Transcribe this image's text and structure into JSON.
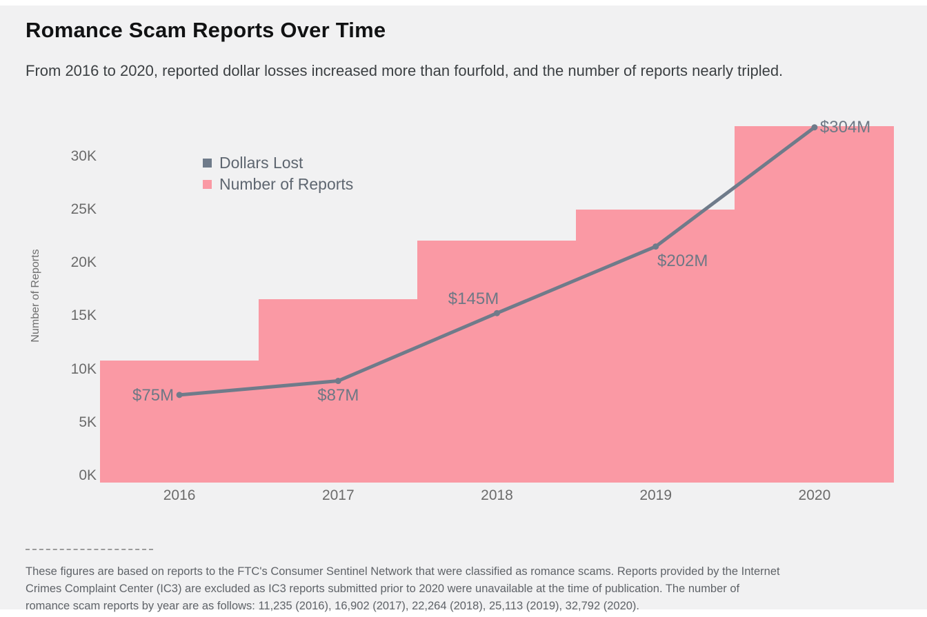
{
  "page": {
    "title": "Romance Scam Reports Over Time",
    "subtitle": "From 2016 to 2020, reported dollar losses increased more than fourfold, and the number of reports nearly tripled.",
    "footnote_lines": [
      "These figures are based on reports to the FTC's Consumer Sentinel Network that were classified as romance scams. Reports provided by the Internet",
      "Crimes Complaint Center (IC3) are excluded as IC3 reports submitted prior to 2020 were unavailable at the time of publication. The number of",
      "romance scam reports by year are as follows: 11,235 (2016), 16,902 (2017), 22,264 (2018), 25,113 (2019), 32,792 (2020)."
    ]
  },
  "legend": {
    "items": [
      {
        "label": "Dollars Lost",
        "color": "#6F7B8A"
      },
      {
        "label": "Number of Reports",
        "color": "#FA99A4"
      }
    ]
  },
  "colors": {
    "background": "#f1f1f2",
    "bar_pink": "#FA99A4",
    "line_gray": "#6F7B8A",
    "text_dark": "#3c4043",
    "axis_text": "#6b6b6b"
  },
  "chart_data": {
    "type": "combo",
    "categories": [
      "2016",
      "2017",
      "2018",
      "2019",
      "2020"
    ],
    "series": [
      {
        "name": "Number of Reports",
        "type": "bar",
        "values": [
          11235,
          16902,
          22264,
          25113,
          32792
        ],
        "color": "#FA99A4"
      },
      {
        "name": "Dollars Lost",
        "type": "line",
        "unit": "USD millions",
        "values": [
          75,
          87,
          145,
          202,
          304
        ],
        "point_labels": [
          "$75M",
          "$87M",
          "$145M",
          "$202M",
          "$304M"
        ],
        "color": "#6F7B8A"
      }
    ],
    "y_left_axis": {
      "label": "Number of Reports",
      "tick_labels": [
        "0K",
        "5K",
        "10K",
        "15K",
        "20K",
        "25K",
        "30K"
      ],
      "tick_values": [
        0,
        5000,
        10000,
        15000,
        20000,
        25000,
        30000
      ],
      "min": 0,
      "max": 32792
    },
    "y_right_axis": {
      "visible": false,
      "min": 0,
      "max": 305
    },
    "grid": false,
    "legend_position": "top-left-inside"
  }
}
